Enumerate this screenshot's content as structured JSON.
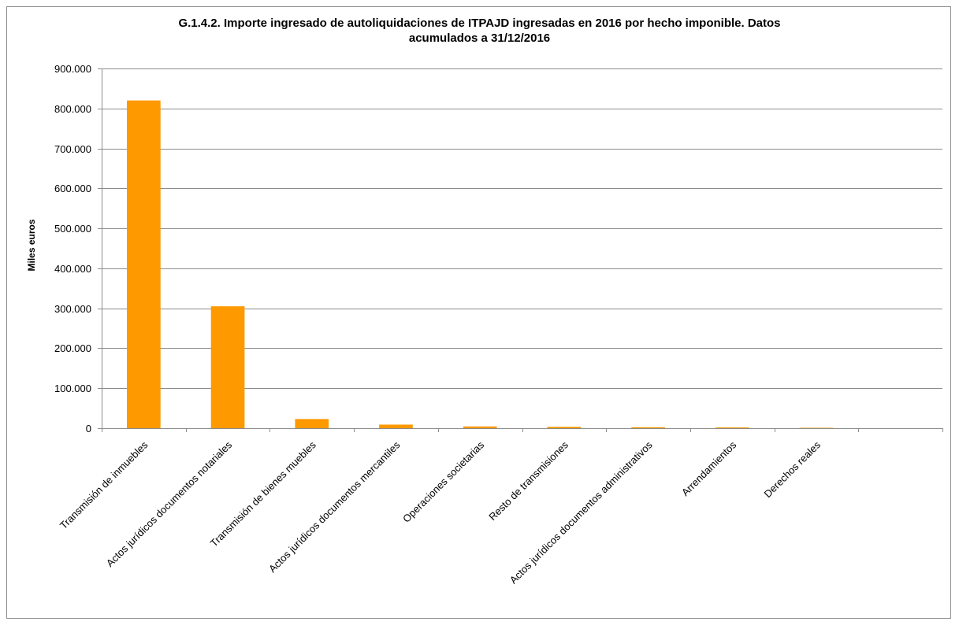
{
  "chart_data": {
    "type": "bar",
    "title_line1": "G.1.4.2. Importe ingresado de autoliquidaciones de ITPAJD ingresadas en 2016 por hecho imponible. Datos",
    "title_line2": "acumulados a 31/12/2016",
    "xlabel": "",
    "ylabel": "Miles euros",
    "ylim": [
      0,
      900000
    ],
    "yticks": [
      0,
      100000,
      200000,
      300000,
      400000,
      500000,
      600000,
      700000,
      800000,
      900000
    ],
    "ytick_labels": [
      "0",
      "100.000",
      "200.000",
      "300.000",
      "400.000",
      "500.000",
      "600.000",
      "700.000",
      "800.000",
      "900.000"
    ],
    "grid": true,
    "legend": "none",
    "bar_color": "#FF9900",
    "categories": [
      "Transmisión de inmuebles",
      "Actos  jurídicos documentos notariales",
      "Transmisión de bienes muebles",
      "Actos  jurídicos documentos mercantiles",
      "Operaciones societarias",
      "Resto de transmisiones",
      "Actos  jurídicos documentos administrativos",
      "Arrendamientos",
      "Derechos reales"
    ],
    "values": [
      820000,
      305000,
      23000,
      9000,
      4500,
      3500,
      2500,
      2000,
      1000
    ]
  }
}
